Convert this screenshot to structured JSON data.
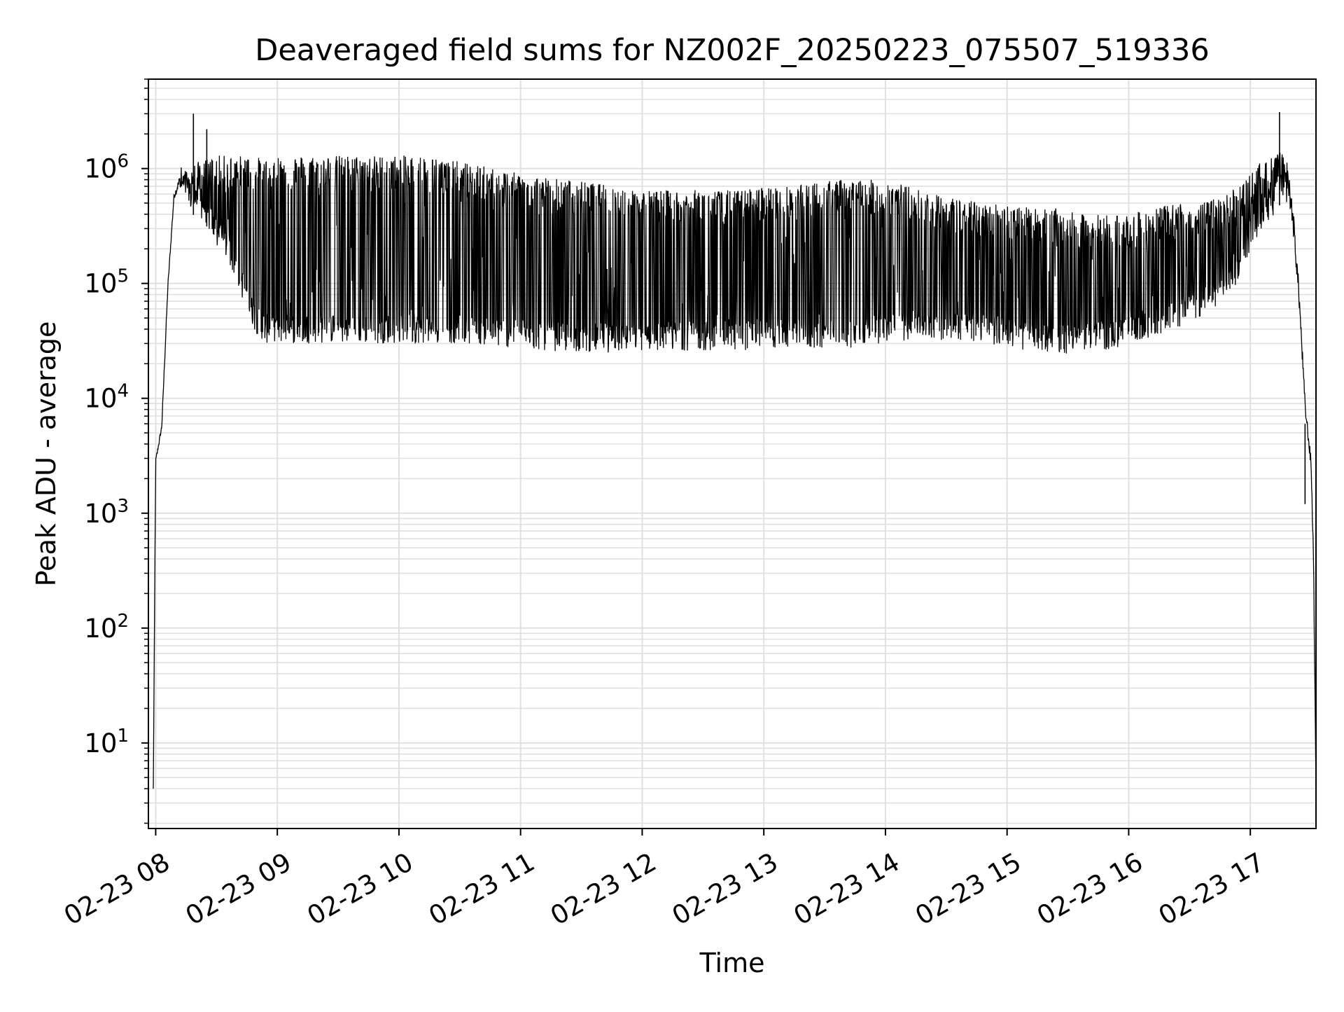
{
  "chart_data": {
    "type": "line",
    "title": "Deaveraged field sums for NZ002F_20250223_075507_519336",
    "xlabel": "Time",
    "ylabel": "Peak ADU - average",
    "yscale": "log",
    "ylim": [
      1.8,
      6000000
    ],
    "x_tick_labels": [
      "02-23 08",
      "02-23 09",
      "02-23 10",
      "02-23 11",
      "02-23 12",
      "02-23 13",
      "02-23 14",
      "02-23 15",
      "02-23 16",
      "02-23 17"
    ],
    "y_ticks": [
      {
        "base": "10",
        "exp": "1",
        "value": 10
      },
      {
        "base": "10",
        "exp": "2",
        "value": 100
      },
      {
        "base": "10",
        "exp": "3",
        "value": 1000
      },
      {
        "base": "10",
        "exp": "4",
        "value": 10000
      },
      {
        "base": "10",
        "exp": "5",
        "value": 100000
      },
      {
        "base": "10",
        "exp": "6",
        "value": 1000000
      }
    ],
    "x_range_hours": [
      7.94,
      17.54
    ],
    "grid": true,
    "line_color": "#000000",
    "grid_color": "#e0e0e0",
    "series": [
      {
        "envelope": {
          "x_hours": [
            7.98,
            8.0,
            8.05,
            8.1,
            8.15,
            8.2,
            8.25,
            8.3,
            8.4,
            8.5,
            8.6,
            8.7,
            8.8,
            8.9,
            9.0,
            9.2,
            9.4,
            9.6,
            9.8,
            10.0,
            10.2,
            10.4,
            10.6,
            10.8,
            11.0,
            11.2,
            11.4,
            11.6,
            11.8,
            12.0,
            12.2,
            12.4,
            12.6,
            12.8,
            13.0,
            13.2,
            13.4,
            13.6,
            13.8,
            14.0,
            14.2,
            14.4,
            14.6,
            14.8,
            15.0,
            15.2,
            15.4,
            15.6,
            15.8,
            16.0,
            16.2,
            16.4,
            16.6,
            16.8,
            16.9,
            17.0,
            17.1,
            17.2,
            17.25,
            17.3,
            17.35,
            17.4,
            17.45,
            17.5,
            17.52,
            17.54
          ],
          "high": [
            4,
            3000,
            6000,
            100000,
            600000,
            900000,
            1000000,
            1100000,
            1200000,
            1300000,
            1300000,
            1300000,
            1300000,
            1200000,
            1300000,
            1300000,
            1300000,
            1300000,
            1300000,
            1300000,
            1300000,
            1200000,
            1100000,
            1000000,
            900000,
            850000,
            800000,
            750000,
            700000,
            650000,
            650000,
            650000,
            650000,
            650000,
            700000,
            700000,
            750000,
            800000,
            800000,
            800000,
            700000,
            600000,
            550000,
            500000,
            500000,
            450000,
            450000,
            400000,
            400000,
            400000,
            450000,
            500000,
            500000,
            600000,
            700000,
            900000,
            1200000,
            1300000,
            1400000,
            1200000,
            500000,
            100000,
            10000,
            3000,
            500,
            4
          ],
          "low": [
            4,
            2500,
            5000,
            80000,
            500000,
            600000,
            500000,
            400000,
            350000,
            200000,
            150000,
            80000,
            40000,
            30000,
            30000,
            30000,
            30000,
            30000,
            30000,
            30000,
            30000,
            30000,
            30000,
            28000,
            27000,
            26000,
            25000,
            25000,
            25000,
            26000,
            26000,
            26000,
            26000,
            26000,
            27000,
            27000,
            27000,
            27000,
            28000,
            30000,
            32000,
            32000,
            32000,
            30000,
            28000,
            25000,
            24000,
            25000,
            26000,
            28000,
            32000,
            40000,
            50000,
            70000,
            100000,
            200000,
            300000,
            400000,
            500000,
            500000,
            200000,
            50000,
            6000,
            2000,
            200,
            4
          ]
        },
        "peaks": [
          {
            "x_hours": 8.31,
            "value": 3000000
          },
          {
            "x_hours": 8.42,
            "value": 2200000
          },
          {
            "x_hours": 17.24,
            "value": 3100000
          },
          {
            "x_hours": 17.45,
            "value": 1200
          }
        ]
      }
    ]
  }
}
